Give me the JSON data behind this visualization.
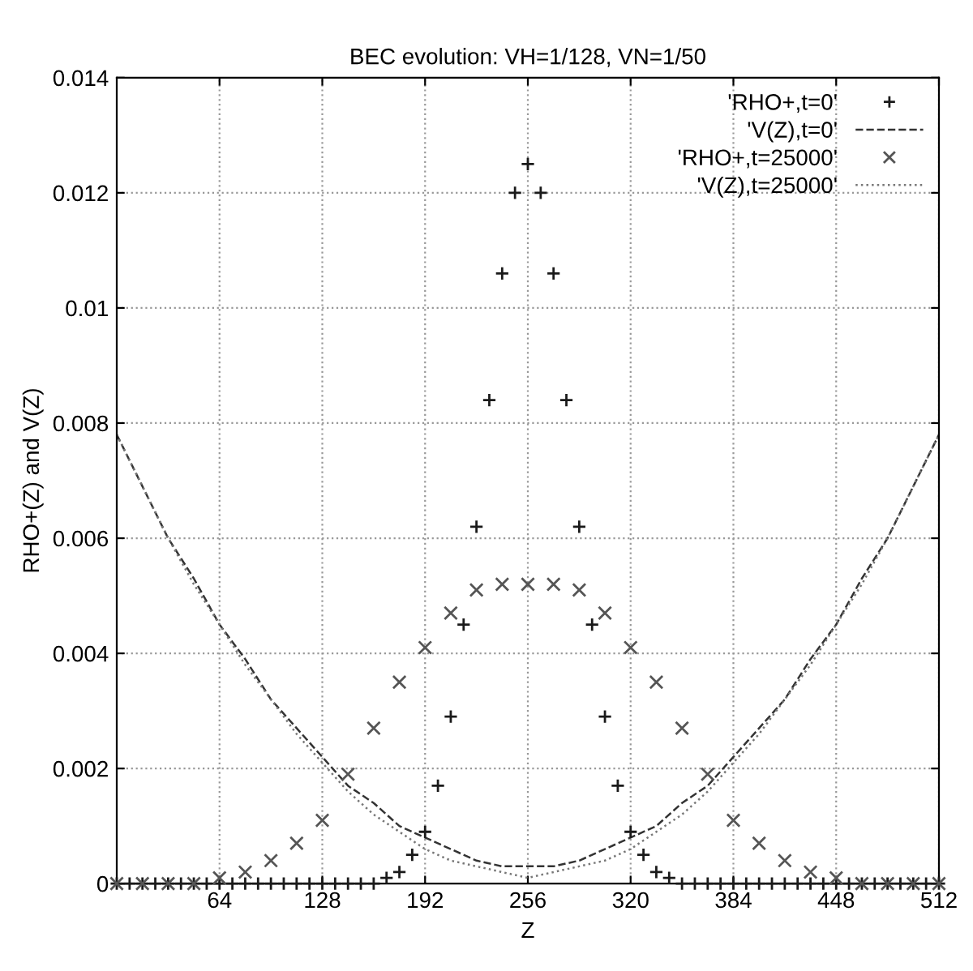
{
  "chart_data": {
    "type": "scatter",
    "title": "BEC evolution: VH=1/128, VN=1/50",
    "xlabel": "Z",
    "ylabel": "RHO+(Z) and V(Z)",
    "xlim": [
      0,
      512
    ],
    "xticks": [
      64,
      128,
      192,
      256,
      320,
      384,
      448,
      512
    ],
    "ylim": [
      0,
      0.014
    ],
    "yticks": [
      0,
      0.002,
      0.004,
      0.006,
      0.008,
      0.01,
      0.012,
      0.014
    ],
    "grid": true,
    "legend": "top right",
    "series": [
      {
        "name": "'RHO+,t=0'",
        "marker": "plus",
        "color": "#1a1a1a",
        "x": [
          0,
          8,
          16,
          24,
          32,
          40,
          48,
          56,
          64,
          72,
          80,
          88,
          96,
          104,
          112,
          120,
          128,
          136,
          144,
          152,
          160,
          168,
          176,
          184,
          192,
          200,
          208,
          216,
          224,
          232,
          240,
          248,
          256,
          264,
          272,
          280,
          288,
          296,
          304,
          312,
          320,
          328,
          336,
          344,
          352,
          360,
          368,
          376,
          384,
          392,
          400,
          408,
          416,
          424,
          432,
          440,
          448,
          456,
          464,
          472,
          480,
          488,
          496,
          504,
          512
        ],
        "values": [
          0,
          0,
          0,
          0,
          0,
          0,
          0,
          0,
          0,
          0,
          0,
          0,
          0,
          0,
          0,
          0,
          0,
          0,
          0,
          0,
          0,
          0.0001,
          0.0002,
          0.0005,
          0.0009,
          0.0017,
          0.0029,
          0.0045,
          0.0062,
          0.0084,
          0.0106,
          0.012,
          0.0125,
          0.012,
          0.0106,
          0.0084,
          0.0062,
          0.0045,
          0.0029,
          0.0017,
          0.0009,
          0.0005,
          0.0002,
          0.0001,
          0,
          0,
          0,
          0,
          0,
          0,
          0,
          0,
          0,
          0,
          0,
          0,
          0,
          0,
          0,
          0,
          0,
          0,
          0,
          0,
          0
        ]
      },
      {
        "name": "'V(Z),t=0'",
        "type": "line",
        "line_style": "dashed",
        "marker": "none",
        "color": "#333333",
        "x": [
          0,
          16,
          32,
          48,
          64,
          80,
          96,
          112,
          128,
          144,
          160,
          176,
          192,
          208,
          224,
          240,
          256,
          272,
          288,
          304,
          320,
          336,
          352,
          368,
          384,
          400,
          416,
          432,
          448,
          464,
          480,
          496,
          512
        ],
        "values": [
          0.0078,
          0.0069,
          0.006,
          0.0053,
          0.0045,
          0.0039,
          0.0032,
          0.0027,
          0.0022,
          0.0017,
          0.0014,
          0.001,
          0.0008,
          0.0006,
          0.0004,
          0.0003,
          0.0003,
          0.0003,
          0.0004,
          0.0006,
          0.0008,
          0.001,
          0.0014,
          0.0017,
          0.0022,
          0.0027,
          0.0032,
          0.0039,
          0.0045,
          0.0053,
          0.006,
          0.0069,
          0.0078
        ]
      },
      {
        "name": "'RHO+,t=25000'",
        "marker": "cross",
        "color": "#555555",
        "x": [
          0,
          16,
          32,
          48,
          64,
          80,
          96,
          112,
          128,
          144,
          160,
          176,
          192,
          208,
          224,
          240,
          256,
          272,
          288,
          304,
          320,
          336,
          352,
          368,
          384,
          400,
          416,
          432,
          448,
          464,
          480,
          496,
          512
        ],
        "values": [
          0,
          0,
          0,
          0,
          0.0001,
          0.0002,
          0.0004,
          0.0007,
          0.0011,
          0.0019,
          0.0027,
          0.0035,
          0.0041,
          0.0047,
          0.0051,
          0.0052,
          0.0052,
          0.0052,
          0.0051,
          0.0047,
          0.0041,
          0.0035,
          0.0027,
          0.0019,
          0.0011,
          0.0007,
          0.0004,
          0.0002,
          0.0001,
          0,
          0,
          0,
          0
        ]
      },
      {
        "name": "'V(Z),t=25000'",
        "type": "line",
        "line_style": "dotted",
        "marker": "none",
        "color": "#777777",
        "x": [
          0,
          16,
          32,
          48,
          64,
          80,
          96,
          112,
          128,
          144,
          160,
          176,
          192,
          208,
          224,
          240,
          256,
          272,
          288,
          304,
          320,
          336,
          352,
          368,
          384,
          400,
          416,
          432,
          448,
          464,
          480,
          496,
          512
        ],
        "values": [
          0.0078,
          0.0069,
          0.006,
          0.0052,
          0.0045,
          0.0038,
          0.0032,
          0.0026,
          0.0021,
          0.0016,
          0.0012,
          0.0009,
          0.0006,
          0.0004,
          0.0003,
          0.0002,
          0.0001,
          0.0002,
          0.0003,
          0.0004,
          0.0006,
          0.0009,
          0.0012,
          0.0016,
          0.0021,
          0.0026,
          0.0032,
          0.0038,
          0.0045,
          0.0052,
          0.006,
          0.0069,
          0.0078
        ]
      }
    ]
  }
}
